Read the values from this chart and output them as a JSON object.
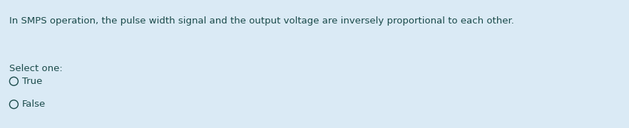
{
  "background_color": "#daeaf5",
  "question_text": "In SMPS operation, the pulse width signal and the output voltage are inversely proportional to each other.",
  "select_label": "Select one:",
  "options": [
    "True",
    "False"
  ],
  "text_color": "#1a4a4a",
  "font_size_question": 9.5,
  "font_size_options": 9.5,
  "figwidth": 8.82,
  "figheight": 1.8
}
